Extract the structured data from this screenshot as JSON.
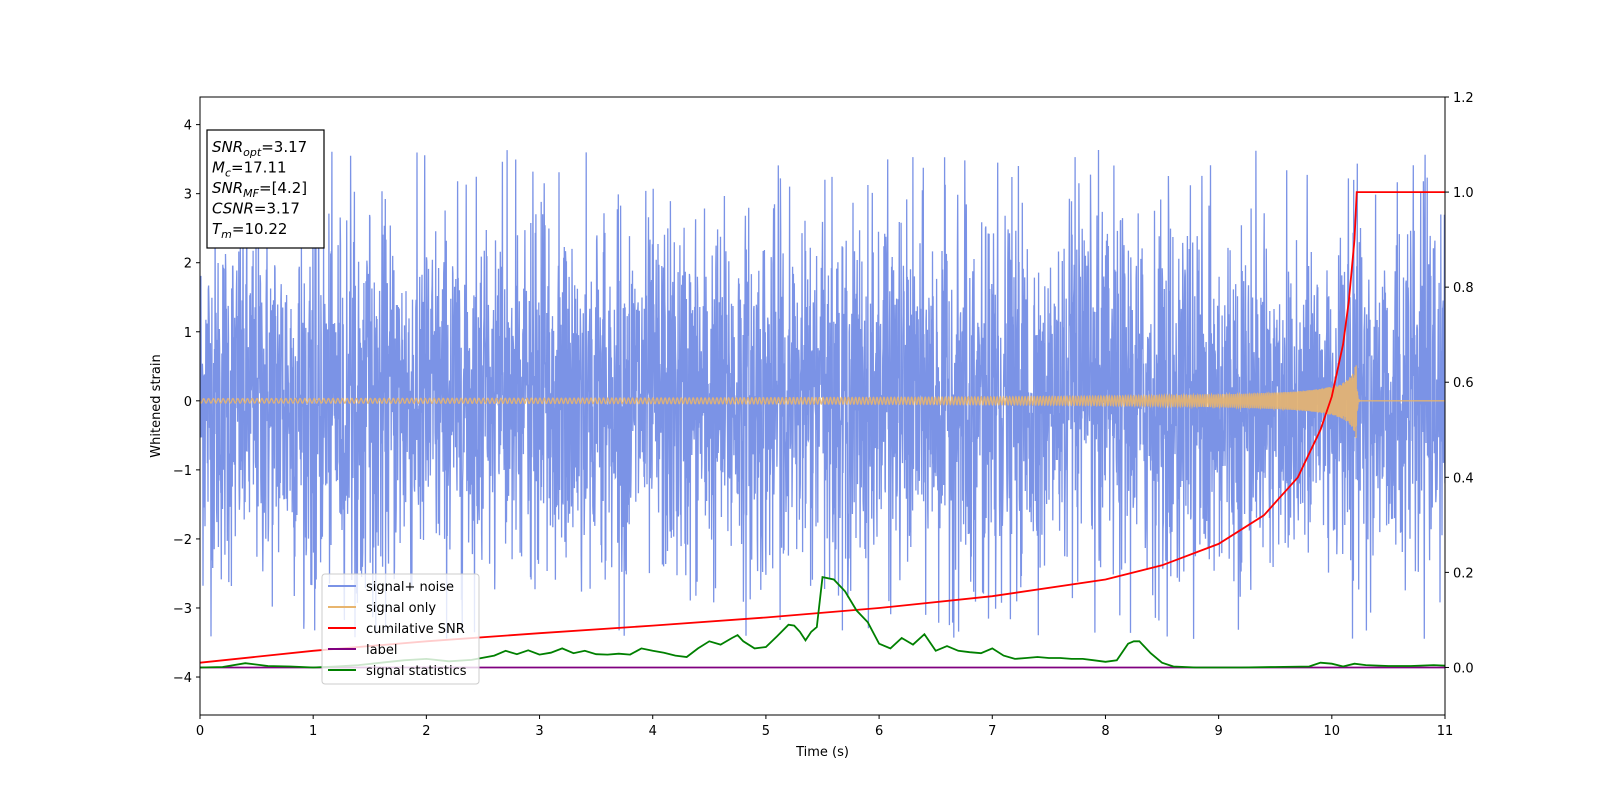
{
  "chart_data": {
    "type": "line",
    "xlabel": "Time (s)",
    "ylabel": "Whitened strain",
    "xlim": [
      0,
      11
    ],
    "ylim_left": [
      -4.55,
      4.4
    ],
    "ylim_right": [
      -0.1,
      1.2
    ],
    "x_ticks": [
      0,
      1,
      2,
      3,
      4,
      5,
      6,
      7,
      8,
      9,
      10,
      11
    ],
    "y_ticks_left": [
      4,
      3,
      2,
      1,
      0,
      -1,
      -2,
      -3,
      -4
    ],
    "y_tick_labels_left": [
      "4",
      "3",
      "2",
      "1",
      "0",
      "−1",
      "−2",
      "−3",
      "−4"
    ],
    "y_ticks_right": [
      1.2,
      1.0,
      0.8,
      0.6,
      0.4,
      0.2,
      0.0
    ],
    "y_tick_labels_right": [
      "1.2",
      "1.0",
      "0.8",
      "0.6",
      "0.4",
      "0.2",
      "0.0"
    ],
    "legend_position": "lower-left",
    "grid": false,
    "info_box": [
      {
        "base": "SNR",
        "sub": "opt",
        "rest": "=3.17"
      },
      {
        "base": "M",
        "sub": "c",
        "rest": "=17.11"
      },
      {
        "base": "SNR",
        "sub": "MF",
        "rest": "=[4.2]"
      },
      {
        "base": "CSNR",
        "sub": "",
        "rest": "=3.17"
      },
      {
        "base": "T",
        "sub": "m",
        "rest": "=10.22"
      }
    ],
    "series": [
      {
        "name": "signal+ noise",
        "axis": "left",
        "color": "#7b93e6",
        "kind": "noise",
        "amplitude_typical": 1.3,
        "peak_max": 3.65,
        "peak_min": -3.45
      },
      {
        "name": "signal only",
        "axis": "left",
        "color": "#e8b56e",
        "kind": "chirp",
        "merger_time": 10.22,
        "peak_amplitude": 0.6
      },
      {
        "name": "cumilative SNR",
        "axis": "right",
        "color": "#ff0000",
        "x": [
          0,
          1,
          2,
          3,
          4,
          5,
          6,
          7,
          8,
          8.5,
          9,
          9.4,
          9.7,
          9.9,
          10.0,
          10.1,
          10.15,
          10.2,
          10.22,
          11
        ],
        "y": [
          0.01,
          0.035,
          0.055,
          0.072,
          0.088,
          0.105,
          0.125,
          0.15,
          0.185,
          0.215,
          0.26,
          0.32,
          0.4,
          0.5,
          0.57,
          0.68,
          0.77,
          0.9,
          1.0,
          1.0
        ]
      },
      {
        "name": "label",
        "axis": "right",
        "color": "#800080",
        "x": [
          0,
          11
        ],
        "y": [
          0,
          0
        ]
      },
      {
        "name": "signal statistics",
        "axis": "right",
        "color": "#008000",
        "x": [
          0,
          0.2,
          0.4,
          0.6,
          0.8,
          1.0,
          1.2,
          1.4,
          1.6,
          1.8,
          2.0,
          2.2,
          2.4,
          2.6,
          2.7,
          2.8,
          2.9,
          3.0,
          3.1,
          3.2,
          3.3,
          3.4,
          3.5,
          3.6,
          3.7,
          3.8,
          3.9,
          4.0,
          4.1,
          4.2,
          4.3,
          4.4,
          4.5,
          4.6,
          4.7,
          4.75,
          4.8,
          4.9,
          5.0,
          5.1,
          5.2,
          5.25,
          5.3,
          5.35,
          5.4,
          5.45,
          5.5,
          5.6,
          5.7,
          5.8,
          5.9,
          6.0,
          6.1,
          6.2,
          6.3,
          6.4,
          6.5,
          6.6,
          6.7,
          6.8,
          6.9,
          7.0,
          7.1,
          7.2,
          7.3,
          7.4,
          7.5,
          7.6,
          7.7,
          7.8,
          7.9,
          8.0,
          8.1,
          8.2,
          8.25,
          8.3,
          8.4,
          8.5,
          8.6,
          8.8,
          9.0,
          9.2,
          9.5,
          9.8,
          9.9,
          10.0,
          10.1,
          10.2,
          10.3,
          10.5,
          10.7,
          10.9,
          11.0
        ],
        "y": [
          0.0,
          0.001,
          0.009,
          0.003,
          0.002,
          0.0,
          0.002,
          0.005,
          0.01,
          0.015,
          0.018,
          0.013,
          0.016,
          0.025,
          0.035,
          0.028,
          0.036,
          0.027,
          0.031,
          0.04,
          0.03,
          0.035,
          0.028,
          0.027,
          0.029,
          0.027,
          0.04,
          0.035,
          0.031,
          0.025,
          0.022,
          0.04,
          0.055,
          0.048,
          0.062,
          0.068,
          0.055,
          0.04,
          0.043,
          0.066,
          0.09,
          0.088,
          0.075,
          0.057,
          0.075,
          0.085,
          0.19,
          0.185,
          0.16,
          0.12,
          0.095,
          0.05,
          0.04,
          0.062,
          0.048,
          0.07,
          0.035,
          0.045,
          0.035,
          0.032,
          0.03,
          0.04,
          0.025,
          0.018,
          0.02,
          0.022,
          0.02,
          0.02,
          0.018,
          0.018,
          0.015,
          0.012,
          0.015,
          0.05,
          0.055,
          0.055,
          0.03,
          0.01,
          0.002,
          0.0,
          0.0,
          0.0,
          0.001,
          0.002,
          0.01,
          0.008,
          0.002,
          0.008,
          0.005,
          0.003,
          0.003,
          0.005,
          0.004
        ]
      }
    ]
  }
}
